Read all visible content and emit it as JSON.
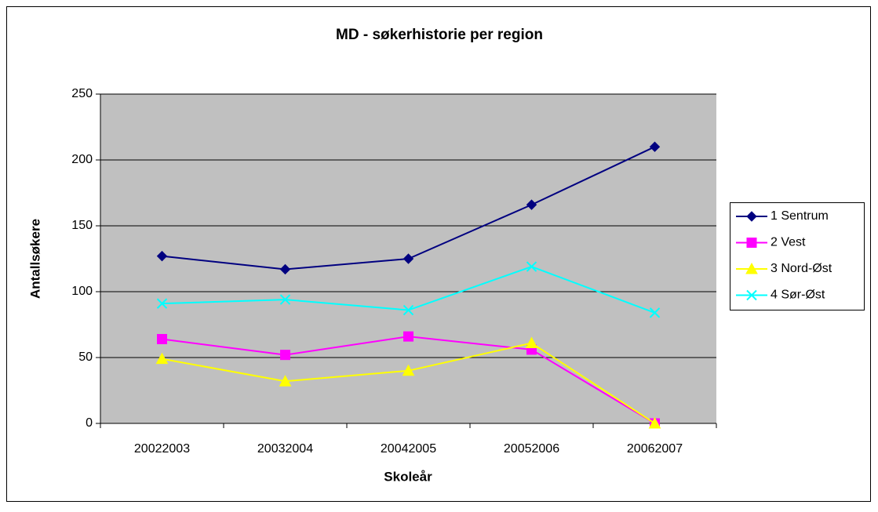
{
  "chart_data": {
    "type": "line",
    "title": "MD - søkerhistorie per region",
    "x_label": "Skoleår",
    "y_label": "Antallsøkere",
    "categories": [
      "20022003",
      "20032004",
      "20042005",
      "20052006",
      "20062007"
    ],
    "series": [
      {
        "name": "1 Sentrum",
        "color": "#000080",
        "marker": "diamond",
        "values": [
          127,
          117,
          125,
          166,
          210
        ]
      },
      {
        "name": "2 Vest",
        "color": "#ff00ff",
        "marker": "square",
        "values": [
          64,
          52,
          66,
          56,
          0
        ]
      },
      {
        "name": "3 Nord-Øst",
        "color": "#ffff00",
        "marker": "triangle",
        "values": [
          49,
          32,
          40,
          61,
          0
        ]
      },
      {
        "name": "4 Sør-Øst",
        "color": "#00ffff",
        "marker": "x",
        "values": [
          91,
          94,
          86,
          119,
          84
        ]
      }
    ],
    "ylim": [
      0,
      250
    ],
    "yticks": [
      0,
      50,
      100,
      150,
      200,
      250
    ],
    "grid": true,
    "legend": "right",
    "plot_background": "#c0c0c0"
  }
}
